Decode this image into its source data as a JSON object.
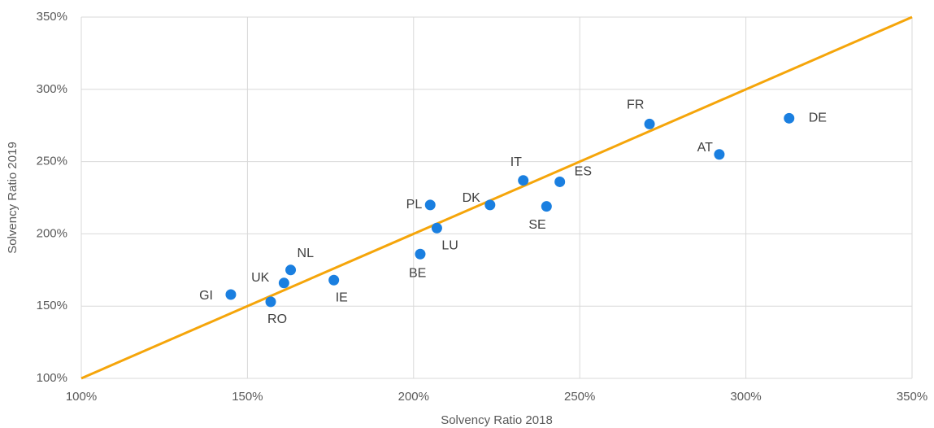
{
  "chart_data": {
    "type": "scatter",
    "x_label": "Solvency Ratio 2018",
    "y_label": "Solvency Ratio 2019",
    "labels": [
      "GI",
      "UK",
      "NL",
      "RO",
      "IE",
      "BE",
      "LU",
      "PL",
      "DK",
      "IT",
      "ES",
      "SE",
      "FR",
      "AT",
      "DE"
    ],
    "x": [
      145,
      161,
      163,
      157,
      176,
      202,
      207,
      205,
      223,
      233,
      244,
      240,
      271,
      292,
      313
    ],
    "values": [
      158,
      166,
      175,
      153,
      168,
      186,
      204,
      220,
      220,
      237,
      236,
      219,
      276,
      255,
      280
    ],
    "color": "#1a7fe0",
    "diagonal_color": "#f5a50a",
    "xlim": [
      100,
      350
    ],
    "ylim": [
      100,
      350
    ],
    "xticks": [
      {
        "value": 100,
        "label": "100%"
      },
      {
        "value": 150,
        "label": "150%"
      },
      {
        "value": 200,
        "label": "200%"
      },
      {
        "value": 250,
        "label": "250%"
      },
      {
        "value": 300,
        "label": "300%"
      },
      {
        "value": 350,
        "label": "350%"
      }
    ],
    "yticks": [
      {
        "value": 100,
        "label": "100%"
      },
      {
        "value": 150,
        "label": "150%"
      },
      {
        "value": 200,
        "label": "200%"
      },
      {
        "value": 250,
        "label": "250%"
      },
      {
        "value": 300,
        "label": "300%"
      },
      {
        "value": 350,
        "label": "350%"
      }
    ],
    "grid": true
  }
}
